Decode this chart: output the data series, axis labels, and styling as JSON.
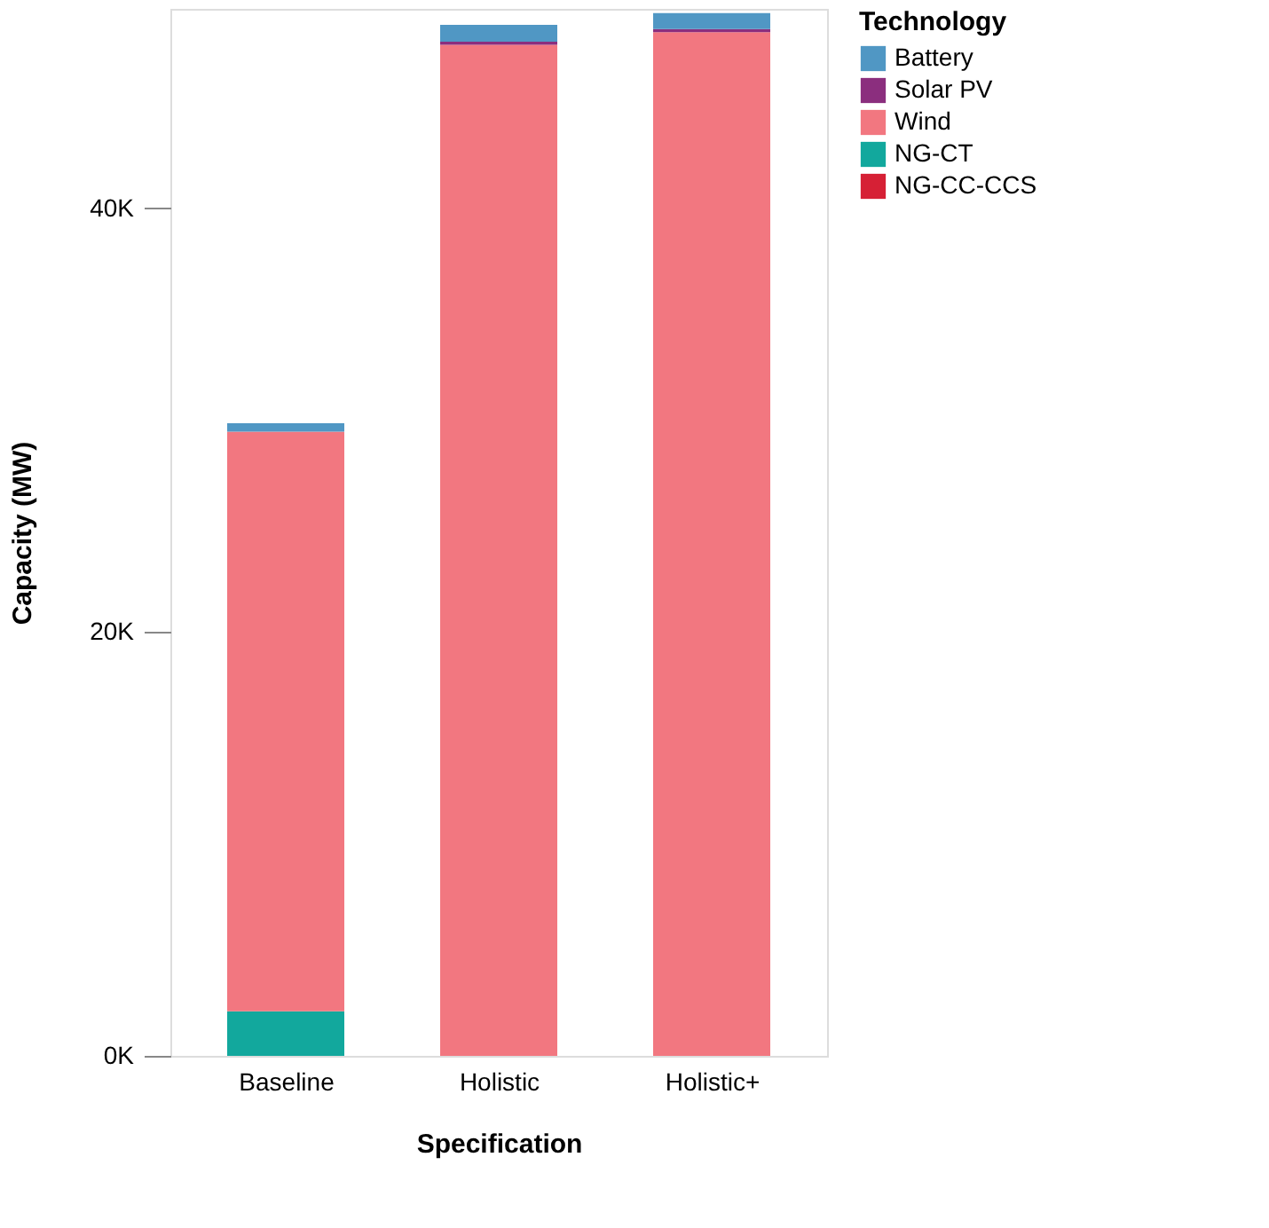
{
  "chart_data": {
    "type": "bar",
    "stacked": true,
    "xlabel": "Specification",
    "ylabel": "Capacity (MW)",
    "legend_title": "Technology",
    "legend": "right",
    "categories": [
      "Baseline",
      "Holistic",
      "Holistic+"
    ],
    "ylim": [
      0,
      49400
    ],
    "yticks": [
      {
        "value": 0,
        "label": "0K"
      },
      {
        "value": 20000,
        "label": "20K"
      },
      {
        "value": 40000,
        "label": "40K"
      }
    ],
    "series": [
      {
        "name": "NG-CC-CCS",
        "color": "#d62035",
        "values": [
          0,
          0,
          0
        ]
      },
      {
        "name": "NG-CT",
        "color": "#12a89d",
        "values": [
          2100,
          0,
          0
        ]
      },
      {
        "name": "Wind",
        "color": "#f27780",
        "values": [
          27350,
          47700,
          48300
        ]
      },
      {
        "name": "Solar PV",
        "color": "#8b2e7e",
        "values": [
          0,
          150,
          150
        ]
      },
      {
        "name": "Battery",
        "color": "#5097c4",
        "values": [
          400,
          800,
          750
        ]
      }
    ]
  }
}
